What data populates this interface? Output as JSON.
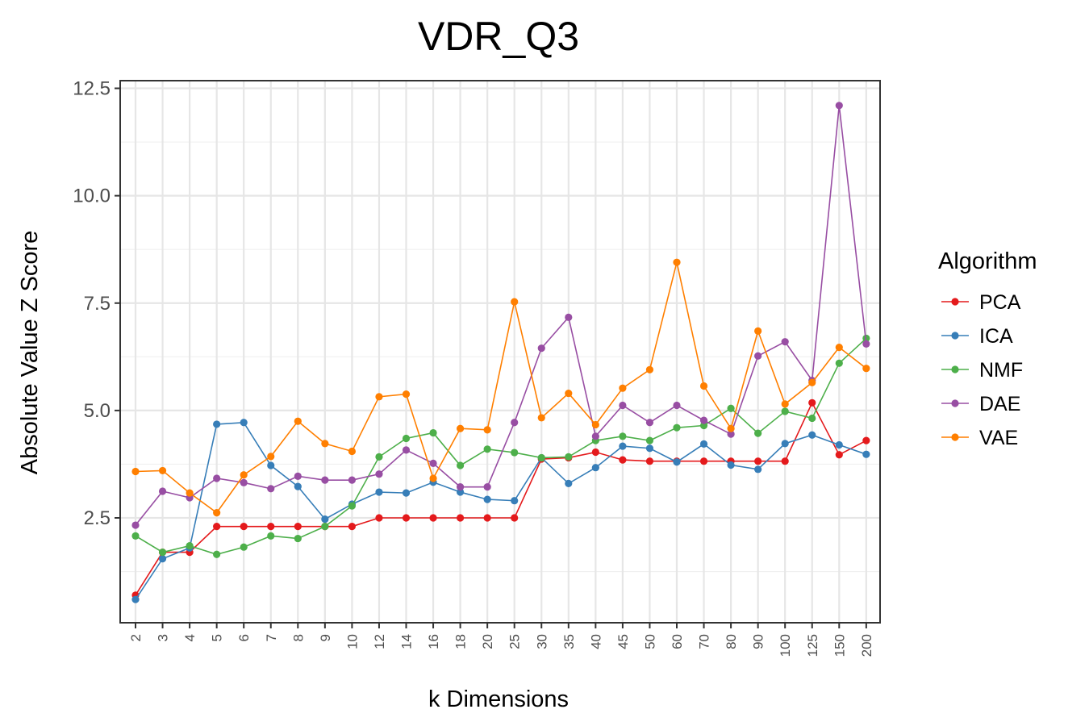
{
  "chart_data": {
    "type": "line",
    "title": "VDR_Q3",
    "xlabel": "k Dimensions",
    "ylabel": "Absolute Value Z Score",
    "categories": [
      "2",
      "3",
      "4",
      "5",
      "6",
      "7",
      "8",
      "9",
      "10",
      "12",
      "14",
      "16",
      "18",
      "20",
      "25",
      "30",
      "35",
      "40",
      "45",
      "50",
      "60",
      "70",
      "80",
      "90",
      "100",
      "125",
      "150",
      "200"
    ],
    "yticks": [
      "2.5",
      "5.0",
      "7.5",
      "10.0",
      "12.5"
    ],
    "ylim": [
      0,
      12.5
    ],
    "grid": true,
    "legend": {
      "title": "Algorithm",
      "position": "right"
    },
    "series": [
      {
        "name": "PCA",
        "color": "#e41a1c",
        "values": [
          0.7,
          1.7,
          1.7,
          2.3,
          2.3,
          2.3,
          2.3,
          2.3,
          2.3,
          2.5,
          2.5,
          2.5,
          2.5,
          2.5,
          2.5,
          3.87,
          3.9,
          4.03,
          3.85,
          3.82,
          3.82,
          3.82,
          3.82,
          3.82,
          3.82,
          5.18,
          3.97,
          4.3
        ]
      },
      {
        "name": "ICA",
        "color": "#377eb8",
        "values": [
          0.6,
          1.55,
          1.8,
          4.68,
          4.72,
          3.72,
          3.23,
          2.47,
          2.82,
          3.1,
          3.08,
          3.33,
          3.1,
          2.93,
          2.9,
          3.9,
          3.3,
          3.67,
          4.17,
          4.12,
          3.8,
          4.22,
          3.73,
          3.63,
          4.23,
          4.43,
          4.2,
          3.98
        ]
      },
      {
        "name": "NMF",
        "color": "#4daf4a",
        "values": [
          2.08,
          1.7,
          1.85,
          1.65,
          1.82,
          2.08,
          2.02,
          2.3,
          2.78,
          3.92,
          4.35,
          4.48,
          3.72,
          4.1,
          4.02,
          3.9,
          3.92,
          4.3,
          4.4,
          4.3,
          4.6,
          4.65,
          5.05,
          4.47,
          4.98,
          4.82,
          6.1,
          6.68
        ]
      },
      {
        "name": "DAE",
        "color": "#984ea3",
        "values": [
          2.33,
          3.12,
          2.97,
          3.42,
          3.32,
          3.18,
          3.47,
          3.38,
          3.38,
          3.52,
          4.08,
          3.77,
          3.22,
          3.22,
          4.72,
          6.45,
          7.17,
          4.4,
          5.12,
          4.72,
          5.12,
          4.77,
          4.45,
          6.27,
          6.6,
          5.7,
          12.1,
          6.55
        ]
      },
      {
        "name": "VAE",
        "color": "#ff7f00",
        "values": [
          3.58,
          3.6,
          3.08,
          2.62,
          3.5,
          3.93,
          4.75,
          4.23,
          4.05,
          5.32,
          5.38,
          3.42,
          4.58,
          4.55,
          7.53,
          4.83,
          5.4,
          4.67,
          5.52,
          5.95,
          8.45,
          5.57,
          4.58,
          6.85,
          5.15,
          5.65,
          6.47,
          5.98
        ]
      }
    ]
  }
}
